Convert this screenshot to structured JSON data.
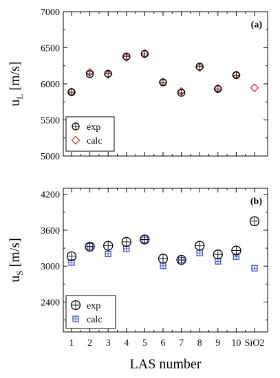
{
  "chart_data": [
    {
      "type": "scatter",
      "panel_label": "(a)",
      "ylabel_main": "u",
      "ylabel_sub": "L",
      "ylabel_unit": " [m/s]",
      "ylim": [
        5000,
        7000
      ],
      "yticks": [
        5000,
        5500,
        6000,
        6500,
        7000
      ],
      "categories": [
        "1",
        "2",
        "3",
        "4",
        "5",
        "6",
        "7",
        "8",
        "9",
        "10",
        "SiO2"
      ],
      "legend_position": "bottom-left",
      "series": [
        {
          "name": "exp",
          "marker": "circle-cross",
          "color": "#000000",
          "values": [
            5885,
            6135,
            6140,
            6380,
            6415,
            6020,
            5875,
            6240,
            5930,
            6120,
            null
          ]
        },
        {
          "name": "calc",
          "marker": "diamond",
          "color": "#d42020",
          "values": [
            5890,
            6160,
            6130,
            6365,
            6420,
            6025,
            5895,
            6225,
            5935,
            6125,
            5945
          ]
        }
      ]
    },
    {
      "type": "scatter",
      "panel_label": "(b)",
      "ylabel_main": "u",
      "ylabel_sub": "S",
      "ylabel_unit": " [m/s]",
      "ylim": [
        1900,
        4300
      ],
      "yticks": [
        2400,
        3000,
        3600,
        4200
      ],
      "categories": [
        "1",
        "2",
        "3",
        "4",
        "5",
        "6",
        "7",
        "8",
        "9",
        "10",
        "SiO2"
      ],
      "xlabel": "LAS number",
      "legend_position": "bottom-left",
      "series": [
        {
          "name": "exp",
          "marker": "circle-cross",
          "color": "#000000",
          "values": [
            3165,
            3325,
            3340,
            3405,
            3445,
            3125,
            3105,
            3340,
            3195,
            3260,
            3750
          ]
        },
        {
          "name": "calc",
          "marker": "square-cross",
          "color": "#2f3fd0",
          "values": [
            3060,
            3330,
            3205,
            3290,
            3440,
            3005,
            3100,
            3220,
            3080,
            3160,
            2965
          ]
        }
      ]
    }
  ]
}
